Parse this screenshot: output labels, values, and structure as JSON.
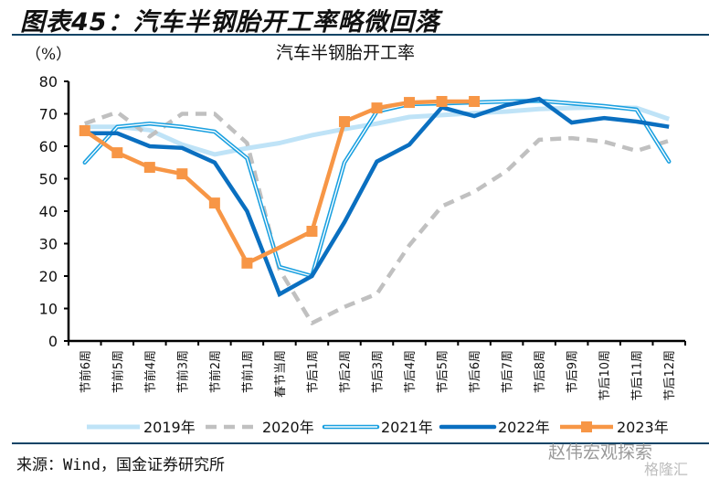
{
  "figure": {
    "title": "图表45：汽车半钢胎开工率略微回落",
    "unit_label": "（%）",
    "source": "来源：Wind，国金证券研究所",
    "watermark": "赵伟宏观探索",
    "watermark2": "格隆汇"
  },
  "chart_data": {
    "type": "line",
    "title": "汽车半钢胎开工率",
    "xlabel": "",
    "ylabel": "（%）",
    "ylim": [
      0,
      80
    ],
    "yticks": [
      0,
      10,
      20,
      30,
      40,
      50,
      60,
      70,
      80
    ],
    "grid": false,
    "legend_position": "bottom",
    "categories": [
      "节前6周",
      "节前5周",
      "节前4周",
      "节前3周",
      "节前2周",
      "节前1周",
      "春节当周",
      "节后1周",
      "节后2周",
      "节后3周",
      "节后4周",
      "节后5周",
      "节后6周",
      "节后7周",
      "节后8周",
      "节后9周",
      "节后10周",
      "节后11周",
      "节后12周"
    ],
    "series": [
      {
        "name": "2019年",
        "color": "#bfe3f7",
        "style": "thick-light",
        "values": [
          66,
          66,
          65,
          60.5,
          57.5,
          59.4,
          61,
          63.4,
          65.3,
          67,
          69,
          69.6,
          70.2,
          70.7,
          71.5,
          71.8,
          72,
          71.8,
          68.4
        ]
      },
      {
        "name": "2020年",
        "color": "#c0c0c0",
        "style": "dashed",
        "values": [
          67,
          70.5,
          63,
          70,
          70,
          61,
          22,
          5.5,
          10.5,
          14.5,
          29.5,
          41.5,
          46,
          52.4,
          62,
          62.5,
          61.4,
          58.6,
          61.7
        ]
      },
      {
        "name": "2021年",
        "color": "#1aa0e0",
        "style": "double",
        "values": [
          55,
          66,
          67,
          66,
          64.5,
          56.3,
          22.8,
          20,
          55,
          70.7,
          73,
          73.2,
          73.5,
          73.8,
          74,
          73.2,
          72.4,
          71.3,
          55.3
        ]
      },
      {
        "name": "2022年",
        "color": "#0a6fc0",
        "style": "thick",
        "values": [
          64,
          64,
          60,
          59.5,
          55,
          40,
          14.4,
          20,
          36.6,
          55.3,
          60.5,
          72,
          69.3,
          72.7,
          74.6,
          67.3,
          68.7,
          67.6,
          66
        ]
      },
      {
        "name": "2023年",
        "color": "#f79646",
        "style": "square-markers",
        "values": [
          64.8,
          58,
          53.5,
          51.5,
          42.5,
          24,
          28.8,
          33.8,
          67.6,
          71.8,
          73.5,
          73.8,
          73.8,
          null,
          null,
          null,
          null,
          null,
          null
        ]
      }
    ]
  }
}
